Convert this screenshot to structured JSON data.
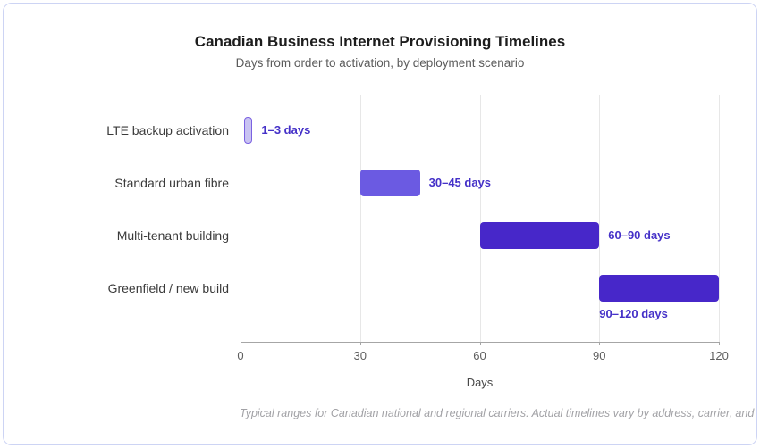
{
  "card": {
    "title": "Canadian Business Internet Provisioning Timelines",
    "subtitle": "Days from order to activation, by deployment scenario",
    "footnote": "Typical ranges for Canadian national and regional carriers. Actual timelines vary by address, carrier, and building"
  },
  "chart_data": {
    "type": "bar",
    "orientation": "horizontal",
    "title": "Canadian Business Internet Provisioning Timelines",
    "subtitle": "Days from order to activation, by deployment scenario",
    "xlabel": "Days",
    "xlim": [
      0,
      120
    ],
    "xticks": [
      0,
      30,
      60,
      90,
      120
    ],
    "grid": "vertical",
    "legend": "none",
    "value_label_color": "#4531c8",
    "bars": [
      {
        "category": "LTE backup activation",
        "start": 1,
        "end": 3,
        "label": "1–3 days",
        "fill": "#c9c3f2",
        "border": "#7b62e1",
        "label_position": "right"
      },
      {
        "category": "Standard urban fibre",
        "start": 30,
        "end": 45,
        "label": "30–45 days",
        "fill": "#6b5ae2",
        "border": null,
        "label_position": "right"
      },
      {
        "category": "Multi-tenant building",
        "start": 60,
        "end": 90,
        "label": "60–90 days",
        "fill": "#4727c9",
        "border": null,
        "label_position": "right"
      },
      {
        "category": "Greenfield / new build",
        "start": 90,
        "end": 120,
        "label": "90–120 days",
        "fill": "#4727c9",
        "border": null,
        "label_position": "below"
      }
    ]
  }
}
